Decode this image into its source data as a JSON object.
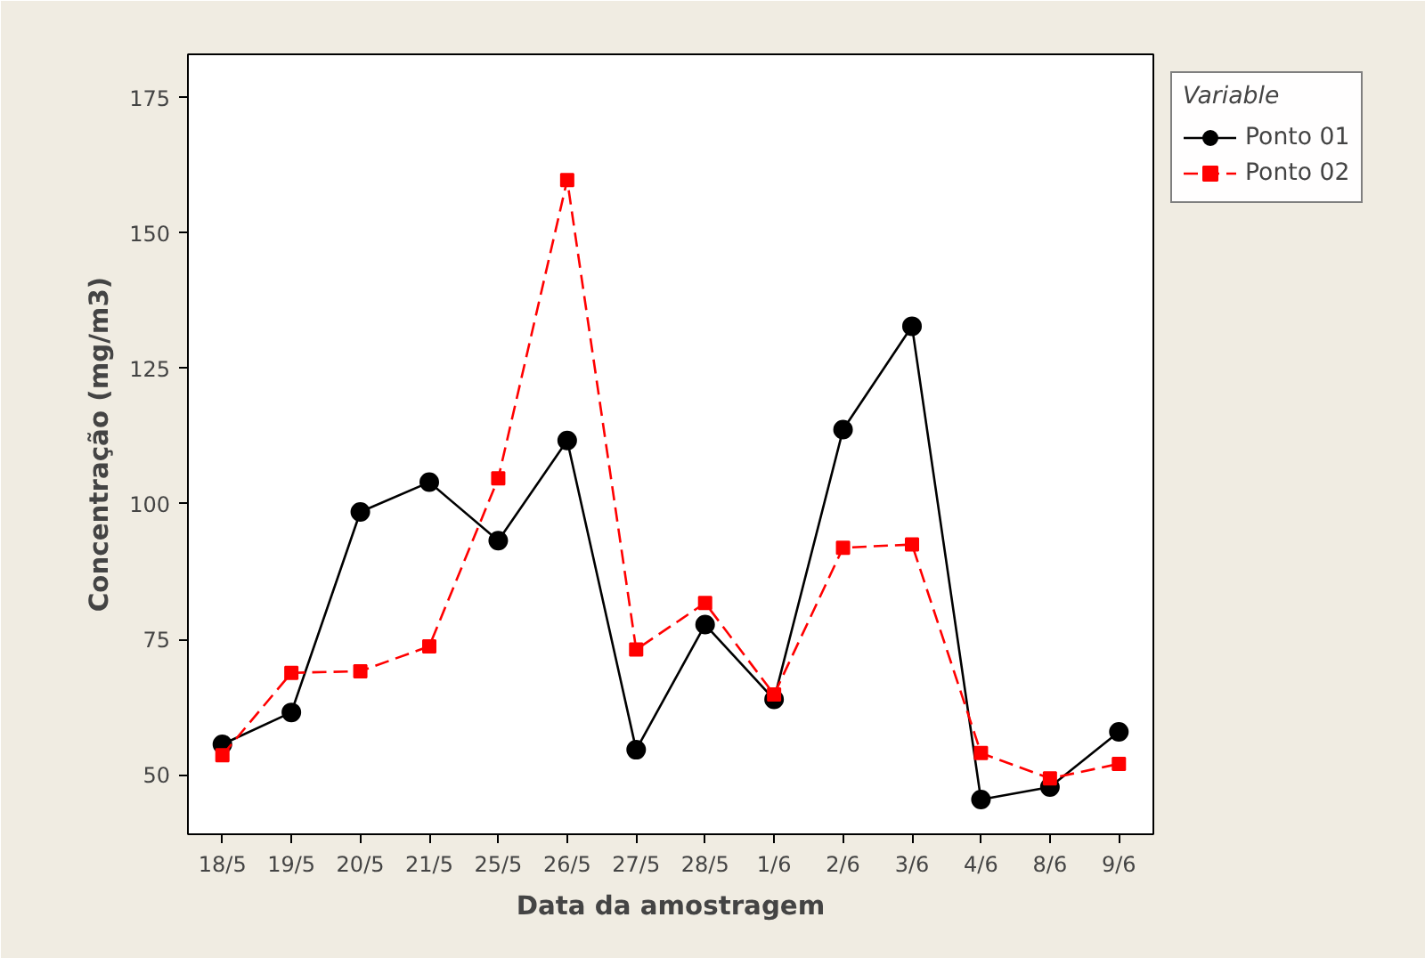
{
  "chart_data": {
    "type": "line",
    "xlabel": "Data da amostragem",
    "ylabel": "Concentração (mg/m3)",
    "categories": [
      "18/5",
      "19/5",
      "20/5",
      "21/5",
      "25/5",
      "26/5",
      "27/5",
      "28/5",
      "1/6",
      "2/6",
      "3/6",
      "4/6",
      "8/6",
      "9/6"
    ],
    "series": [
      {
        "name": "Ponto 01",
        "color": "#000000",
        "marker": "circle",
        "line_style": "solid",
        "values": [
          55.6,
          61.5,
          98.5,
          104,
          93.2,
          111.7,
          54.6,
          77.7,
          63.9,
          113.7,
          132.8,
          45.4,
          47.7,
          57.9
        ]
      },
      {
        "name": "Ponto 02",
        "color": "#ff0000",
        "marker": "square",
        "line_style": "dashed",
        "values": [
          53.6,
          68.8,
          69.1,
          73.7,
          104.7,
          159.8,
          73.1,
          81.7,
          64.8,
          91.9,
          92.5,
          54,
          49.3,
          52
        ]
      }
    ],
    "ylim": [
      39,
      183
    ],
    "yticks": [
      50,
      75,
      100,
      125,
      150,
      175
    ],
    "grid": false,
    "legend": "right",
    "legend_title": "Variable"
  }
}
